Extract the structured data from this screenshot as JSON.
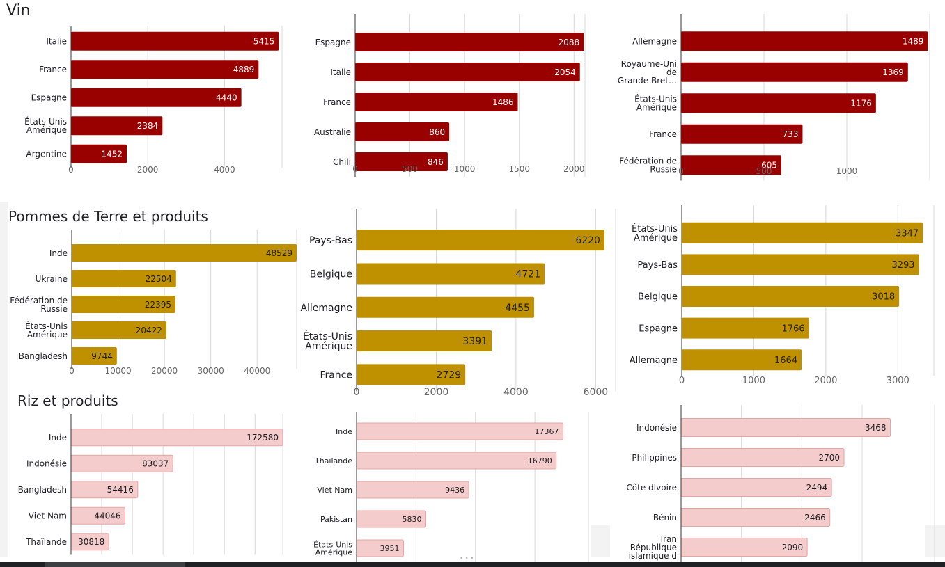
{
  "sections": [
    {
      "title": "Vin",
      "color": "#990000"
    },
    {
      "title": "Pommes de Terre et produits",
      "color": "#bf9000"
    },
    {
      "title": "Riz et produits",
      "color": "#f4cccc"
    }
  ],
  "chart_data": [
    {
      "type": "bar",
      "orientation": "horizontal",
      "section": "Vin",
      "categories": [
        [
          "Italie"
        ],
        [
          "France"
        ],
        [
          "Espagne"
        ],
        [
          "États-Unis",
          "Amérique"
        ],
        [
          "Argentine"
        ]
      ],
      "values": [
        5415,
        4889,
        4440,
        2384,
        1452
      ],
      "xlim": [
        0,
        5500
      ],
      "xticks": [
        0,
        2000,
        4000
      ],
      "grid": true
    },
    {
      "type": "bar",
      "orientation": "horizontal",
      "section": "Vin",
      "categories": [
        [
          "Espagne"
        ],
        [
          "Italie"
        ],
        [
          "France"
        ],
        [
          "Australie"
        ],
        [
          "Chili"
        ]
      ],
      "values": [
        2088,
        2054,
        1486,
        860,
        846
      ],
      "xlim": [
        0,
        2100
      ],
      "xticks": [
        0,
        500,
        1000,
        1500,
        2000
      ],
      "grid": true
    },
    {
      "type": "bar",
      "orientation": "horizontal",
      "section": "Vin",
      "categories": [
        [
          "Allemagne"
        ],
        [
          "Royaume-Uni",
          "de",
          "Grande-Bret…"
        ],
        [
          "États-Unis",
          "Amérique"
        ],
        [
          "France"
        ],
        [
          "Fédération de",
          "Russie"
        ]
      ],
      "values": [
        1489,
        1369,
        1176,
        733,
        605
      ],
      "xlim": [
        0,
        1500
      ],
      "xticks": [
        0,
        500,
        1000
      ],
      "grid": true
    },
    {
      "type": "bar",
      "orientation": "horizontal",
      "section": "Pommes de Terre et produits",
      "categories": [
        [
          "Inde"
        ],
        [
          "Ukraine"
        ],
        [
          "Fédération de",
          "Russie"
        ],
        [
          "États-Unis",
          "Amérique"
        ],
        [
          "Bangladesh"
        ]
      ],
      "values": [
        48529,
        22504,
        22395,
        20422,
        9744
      ],
      "xlim": [
        0,
        48529
      ],
      "xticks": [
        0,
        10000,
        20000,
        30000,
        40000
      ],
      "grid": true
    },
    {
      "type": "bar",
      "orientation": "horizontal",
      "section": "Pommes de Terre et produits",
      "categories": [
        [
          "Pays-Bas"
        ],
        [
          "Belgique"
        ],
        [
          "Allemagne"
        ],
        [
          "États-Unis",
          "Amérique"
        ],
        [
          "France"
        ]
      ],
      "values": [
        6220,
        4721,
        4455,
        3391,
        2729
      ],
      "xlim": [
        0,
        6500
      ],
      "xticks": [
        0,
        2000,
        4000,
        6000
      ],
      "grid": true
    },
    {
      "type": "bar",
      "orientation": "horizontal",
      "section": "Pommes de Terre et produits",
      "categories": [
        [
          "États-Unis",
          "Amérique"
        ],
        [
          "Pays-Bas"
        ],
        [
          "Belgique"
        ],
        [
          "Espagne"
        ],
        [
          "Allemagne"
        ]
      ],
      "values": [
        3347,
        3293,
        3018,
        1766,
        1664
      ],
      "xlim": [
        0,
        3500
      ],
      "xticks": [
        0,
        1000,
        2000,
        3000
      ],
      "grid": true
    },
    {
      "type": "bar",
      "orientation": "horizontal",
      "section": "Riz et produits",
      "categories": [
        [
          "Inde"
        ],
        [
          "Indonésie"
        ],
        [
          "Bangladesh"
        ],
        [
          "Viet Nam"
        ],
        [
          "Thaïlande"
        ]
      ],
      "values": [
        172580,
        83037,
        54416,
        44046,
        30818
      ],
      "xlim": [
        0,
        172580
      ],
      "xticks": [],
      "grid": true
    },
    {
      "type": "bar",
      "orientation": "horizontal",
      "section": "Riz et produits",
      "categories": [
        [
          "Inde"
        ],
        [
          "Thaïlande"
        ],
        [
          "Viet Nam"
        ],
        [
          "Pakistan"
        ],
        [
          "États-Unis",
          "Amérique"
        ]
      ],
      "values": [
        17367,
        16790,
        9436,
        5830,
        3951
      ],
      "xlim": [
        0,
        19500
      ],
      "xticks": [],
      "grid": true
    },
    {
      "type": "bar",
      "orientation": "horizontal",
      "section": "Riz et produits",
      "categories": [
        [
          "Indonésie"
        ],
        [
          "Philippines"
        ],
        [
          "Côte dIvoire"
        ],
        [
          "Bénin"
        ],
        [
          "Iran",
          "République",
          "islamique d"
        ]
      ],
      "values": [
        3468,
        2700,
        2494,
        2466,
        2090
      ],
      "xlim": [
        0,
        4200
      ],
      "xticks": [],
      "grid": true
    }
  ]
}
